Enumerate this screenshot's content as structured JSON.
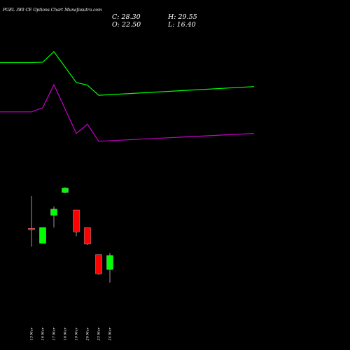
{
  "title": "PGEL 380  CE Options Chart Munafasutra.com",
  "ohlc": {
    "close_label": "C: 28.30",
    "open_label": "O: 22.50",
    "high_label": "H: 29.55",
    "low_label": "L: 16.40"
  },
  "colors": {
    "background": "#000000",
    "up": "#00ff00",
    "down": "#ff0000",
    "upper_band": "#00ff00",
    "lower_band": "#cc00cc",
    "text": "#ffffff"
  },
  "chart_data": {
    "type": "candlestick",
    "categories": [
      "13 Mar",
      "16 Mar",
      "17 Mar",
      "18 Mar",
      "19 Mar",
      "20 Mar",
      "23 Mar",
      "24 Mar"
    ],
    "candles": [
      {
        "date": "13 Mar",
        "open": 31.5,
        "high": 50.0,
        "low": 21.0,
        "close": 31.0
      },
      {
        "date": "16 Mar",
        "open": 23.0,
        "high": 32.0,
        "low": 23.0,
        "close": 32.0
      },
      {
        "date": "17 Mar",
        "open": 39.0,
        "high": 44.0,
        "low": 32.0,
        "close": 42.5
      },
      {
        "date": "18 Mar",
        "open": 52.0,
        "high": 55.0,
        "low": 51.5,
        "close": 54.5
      },
      {
        "date": "19 Mar",
        "open": 42.0,
        "high": 42.0,
        "low": 27.0,
        "close": 29.5
      },
      {
        "date": "20 Mar",
        "open": 32.0,
        "high": 32.0,
        "low": 22.0,
        "close": 22.5
      },
      {
        "date": "23 Mar",
        "open": 16.5,
        "high": 16.5,
        "low": 5.0,
        "close": 5.5
      },
      {
        "date": "24 Mar",
        "open": 8.0,
        "high": 17.5,
        "low": 0.5,
        "close": 16.0
      }
    ],
    "series": [
      {
        "color": "#00ff00",
        "x": [
          "-",
          "13 Mar",
          "16 Mar",
          "17 Mar",
          "19 Mar",
          "20 Mar",
          "23 Mar",
          "24 Mar"
        ],
        "values": [
          214,
          214,
          215,
          238,
          171,
          165,
          143,
          162
        ]
      },
      {
        "color": "#cc00cc",
        "x": [
          "-",
          "13 Mar",
          "16 Mar",
          "17 Mar",
          "19 Mar",
          "20 Mar",
          "23 Mar",
          "24 Mar"
        ],
        "values": [
          107,
          107,
          116,
          166,
          60,
          80,
          43,
          60
        ]
      }
    ],
    "x_extent": [
      -1,
      7.3
    ],
    "y_extent": [
      0,
      259
    ]
  }
}
